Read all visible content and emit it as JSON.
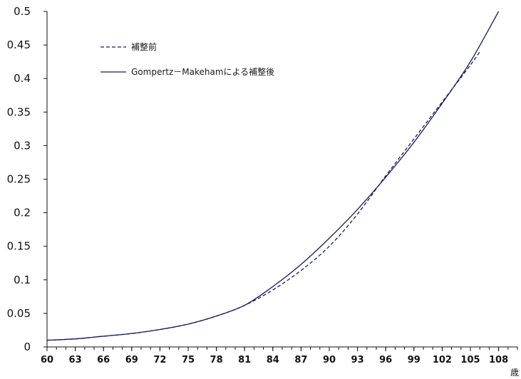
{
  "chart_data": {
    "type": "line",
    "title": "",
    "xlabel": "歳",
    "ylabel": "",
    "x_ticks": [
      "60",
      "63",
      "66",
      "69",
      "72",
      "75",
      "78",
      "81",
      "84",
      "87",
      "90",
      "93",
      "96",
      "99",
      "102",
      "105",
      "108"
    ],
    "y_ticks": [
      "0",
      "0.05",
      "0.1",
      "0.15",
      "0.2",
      "0.25",
      "0.3",
      "0.35",
      "0.4",
      "0.45",
      "0.5"
    ],
    "xlim": [
      60,
      110
    ],
    "ylim": [
      0,
      0.5
    ],
    "grid": false,
    "legend_position": "top-left",
    "colors": {
      "line": "#1c1c5c",
      "axis": "#111111"
    },
    "series": [
      {
        "name": "補整前",
        "style": "dashed",
        "x": [
          60,
          63,
          66,
          69,
          72,
          75,
          78,
          81,
          84,
          87,
          90,
          93,
          96,
          99,
          102,
          105,
          106
        ],
        "y": [
          0.01,
          0.012,
          0.016,
          0.02,
          0.026,
          0.034,
          0.046,
          0.062,
          0.085,
          0.114,
          0.15,
          0.198,
          0.255,
          0.31,
          0.365,
          0.42,
          0.44
        ]
      },
      {
        "name": "Gompertz－Makehamによる補整後",
        "style": "solid",
        "x": [
          60,
          63,
          66,
          69,
          72,
          75,
          78,
          81,
          84,
          87,
          90,
          93,
          96,
          99,
          102,
          105,
          108
        ],
        "y": [
          0.01,
          0.012,
          0.016,
          0.02,
          0.026,
          0.034,
          0.046,
          0.062,
          0.09,
          0.123,
          0.162,
          0.205,
          0.253,
          0.305,
          0.363,
          0.425,
          0.5
        ]
      }
    ]
  }
}
